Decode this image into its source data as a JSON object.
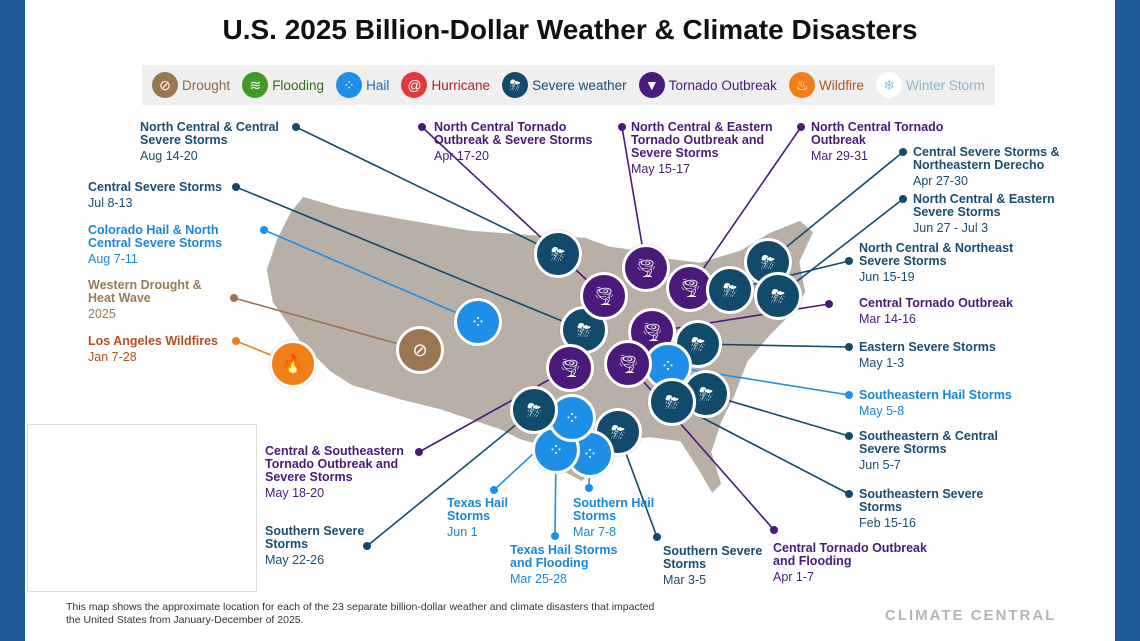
{
  "title": "U.S. 2025 Billion-Dollar Weather & Climate Disasters",
  "legend": [
    {
      "label": "Drought",
      "icon": "drought-icon",
      "color": "#9b7650",
      "text": "#8a6a47"
    },
    {
      "label": "Flooding",
      "icon": "flooding-icon",
      "color": "#3f9a2a",
      "text": "#2f6e1f"
    },
    {
      "label": "Hail",
      "icon": "hail-icon",
      "color": "#1e8fe6",
      "text": "#1a6fb5"
    },
    {
      "label": "Hurricane",
      "icon": "hurricane-icon",
      "color": "#e0393e",
      "text": "#b02328"
    },
    {
      "label": "Severe weather",
      "icon": "severe-weather-icon",
      "color": "#114a6b",
      "text": "#1a4d70"
    },
    {
      "label": "Tornado Outbreak",
      "icon": "tornado-icon",
      "color": "#4a1a7a",
      "text": "#4a1a7a"
    },
    {
      "label": "Wildfire",
      "icon": "wildfire-icon",
      "color": "#f07f1a",
      "text": "#b5501d"
    },
    {
      "label": "Winter Storm",
      "icon": "snowflake-icon",
      "color": "#ffffff",
      "text": "#8fb4cc"
    }
  ],
  "events": [
    {
      "label": "North Central & Central Severe Storms",
      "date": "Aug 14-20",
      "type": "severe"
    },
    {
      "label": "Central Severe Storms",
      "date": "Jul 8-13",
      "type": "severe"
    },
    {
      "label": "Colorado Hail & North Central Severe Storms",
      "date": "Aug 7-11",
      "type": "hail"
    },
    {
      "label": "Western Drought & Heat Wave",
      "date": "2025",
      "type": "drought"
    },
    {
      "label": "Los Angeles Wildfires",
      "date": "Jan 7-28",
      "type": "wildfire"
    },
    {
      "label": "North Central Tornado Outbreak & Severe Storms",
      "date": "Apr 17-20",
      "type": "tornado"
    },
    {
      "label": "North Central & Eastern Tornado Outbreak and Severe Storms",
      "date": "May 15-17",
      "type": "tornado"
    },
    {
      "label": "North Central Tornado Outbreak",
      "date": "Mar 29-31",
      "type": "tornado"
    },
    {
      "label": "Central Severe Storms & Northeastern Derecho",
      "date": "Apr 27-30",
      "type": "severe"
    },
    {
      "label": "North Central & Eastern Severe Storms",
      "date": "Jun 27 - Jul 3",
      "type": "severe"
    },
    {
      "label": "North Central & Northeast Severe Storms",
      "date": "Jun 15-19",
      "type": "severe"
    },
    {
      "label": "Central Tornado Outbreak",
      "date": "Mar 14-16",
      "type": "tornado"
    },
    {
      "label": "Eastern Severe Storms",
      "date": "May 1-3",
      "type": "severe"
    },
    {
      "label": "Southeastern Hail Storms",
      "date": "May 5-8",
      "type": "hail"
    },
    {
      "label": "Southeastern & Central Severe Storms",
      "date": "Jun 5-7",
      "type": "severe"
    },
    {
      "label": "Southeastern Severe Storms",
      "date": "Feb 15-16",
      "type": "severe"
    },
    {
      "label": "Central Tornado Outbreak and Flooding",
      "date": "Apr 1-7",
      "type": "tornado"
    },
    {
      "label": "Southern Severe Storms",
      "date": "Mar 3-5",
      "type": "severe"
    },
    {
      "label": "Southern Hail Storms",
      "date": "Mar 7-8",
      "type": "hail"
    },
    {
      "label": "Texas Hail Storms and Flooding",
      "date": "Mar 25-28",
      "type": "hail"
    },
    {
      "label": "Texas Hail Storms",
      "date": "Jun 1",
      "type": "hail"
    },
    {
      "label": "Southern Severe Storms",
      "date": "May 22-26",
      "type": "severe"
    },
    {
      "label": "Central & Southeastern Tornado Outbreak and Severe Storms",
      "date": "May 18-20",
      "type": "tornado"
    }
  ],
  "type_colors": {
    "severe": "#114a6b",
    "hail": "#1e8fe6",
    "tornado": "#4a1a7a",
    "drought": "#9b7650",
    "wildfire": "#f07f1a"
  },
  "text_colors": {
    "severe": "#1a4d70",
    "hail": "#1a86db",
    "tornado": "#4a1a7a",
    "drought": "#9b7a55",
    "wildfire": "#b5501d"
  },
  "footer": "This map shows the approximate location for each of the 23 separate billion-dollar weather and climate disasters that impacted the United States from January-December of 2025.",
  "logo": "CLIMATE CENTRAL"
}
